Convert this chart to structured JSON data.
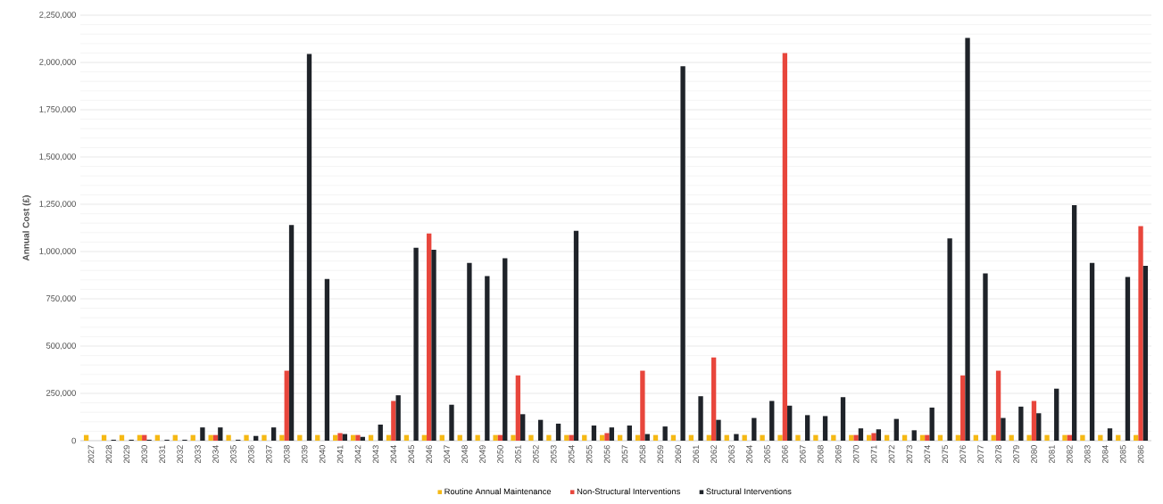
{
  "chart_data": {
    "type": "bar",
    "ylabel": "Annual Cost (£)",
    "categories": [
      "2027",
      "2028",
      "2029",
      "2030",
      "2031",
      "2032",
      "2033",
      "2034",
      "2035",
      "2036",
      "2037",
      "2038",
      "2039",
      "2040",
      "2041",
      "2042",
      "2043",
      "2044",
      "2045",
      "2046",
      "2047",
      "2048",
      "2049",
      "2050",
      "2051",
      "2052",
      "2053",
      "2054",
      "2055",
      "2056",
      "2057",
      "2058",
      "2059",
      "2060",
      "2061",
      "2062",
      "2063",
      "2064",
      "2065",
      "2066",
      "2067",
      "2068",
      "2069",
      "2070",
      "2071",
      "2072",
      "2073",
      "2074",
      "2075",
      "2076",
      "2077",
      "2078",
      "2079",
      "2080",
      "2081",
      "2082",
      "2083",
      "2084",
      "2085",
      "2086"
    ],
    "series": [
      {
        "name": "Routine Annual Maintenance",
        "color": "#f5b915",
        "values": [
          30000,
          30000,
          30000,
          30000,
          30000,
          30000,
          30000,
          30000,
          30000,
          30000,
          30000,
          30000,
          30000,
          30000,
          30000,
          30000,
          30000,
          30000,
          30000,
          30000,
          30000,
          30000,
          30000,
          30000,
          30000,
          30000,
          30000,
          30000,
          30000,
          30000,
          30000,
          30000,
          30000,
          30000,
          30000,
          30000,
          30000,
          30000,
          30000,
          30000,
          30000,
          30000,
          30000,
          30000,
          30000,
          30000,
          30000,
          30000,
          30000,
          30000,
          30000,
          30000,
          30000,
          30000,
          30000,
          30000,
          30000,
          30000,
          30000,
          30000
        ]
      },
      {
        "name": "Non-Structural Interventions",
        "color": "#e8463c",
        "values": [
          null,
          null,
          null,
          30000,
          null,
          null,
          null,
          30000,
          null,
          null,
          null,
          370000,
          null,
          null,
          40000,
          30000,
          null,
          210000,
          null,
          1095000,
          null,
          null,
          null,
          30000,
          345000,
          null,
          null,
          30000,
          null,
          40000,
          null,
          370000,
          null,
          null,
          null,
          440000,
          null,
          null,
          null,
          2050000,
          null,
          null,
          null,
          30000,
          40000,
          null,
          null,
          30000,
          null,
          345000,
          null,
          370000,
          null,
          210000,
          null,
          30000,
          null,
          null,
          null,
          1135000
        ]
      },
      {
        "name": "Structural Interventions",
        "color": "#1f2329",
        "values": [
          null,
          5000,
          5000,
          5000,
          5000,
          5000,
          70000,
          70000,
          5000,
          25000,
          70000,
          1140000,
          2045000,
          855000,
          35000,
          20000,
          85000,
          240000,
          1020000,
          1010000,
          190000,
          940000,
          870000,
          965000,
          140000,
          110000,
          90000,
          1110000,
          80000,
          70000,
          80000,
          35000,
          75000,
          1980000,
          235000,
          110000,
          35000,
          120000,
          210000,
          185000,
          135000,
          130000,
          230000,
          65000,
          60000,
          115000,
          55000,
          175000,
          1070000,
          2130000,
          885000,
          120000,
          180000,
          145000,
          275000,
          1245000,
          940000,
          65000,
          865000,
          925000
        ]
      }
    ],
    "ylim": [
      0,
      2250000
    ],
    "yticks": [
      {
        "value": 0,
        "label": "0"
      },
      {
        "value": 250000,
        "label": "250,000"
      },
      {
        "value": 500000,
        "label": "500,000"
      },
      {
        "value": 750000,
        "label": "750,000"
      },
      {
        "value": 1000000,
        "label": "1,000,000"
      },
      {
        "value": 1250000,
        "label": "1,250,000"
      },
      {
        "value": 1500000,
        "label": "1,500,000"
      },
      {
        "value": 1750000,
        "label": "1,750,000"
      },
      {
        "value": 2000000,
        "label": "2,000,000"
      },
      {
        "value": 2250000,
        "label": "2,250,000"
      }
    ],
    "grid": "y",
    "legend": "bottom"
  }
}
